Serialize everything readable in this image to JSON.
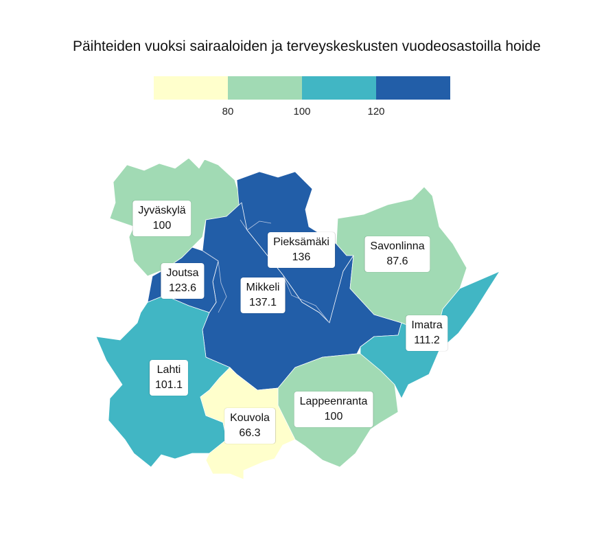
{
  "title": "Päihteiden vuoksi sairaaloiden ja terveyskeskusten vuodeosastoilla hoide",
  "legend": {
    "colors": [
      "#ffffcc",
      "#a1dab4",
      "#41b6c4",
      "#225ea8"
    ],
    "ticks": [
      "80",
      "100",
      "120"
    ]
  },
  "regions": [
    {
      "name": "Jyväskylä",
      "value": "100",
      "color": "#a1dab4"
    },
    {
      "name": "Pieksämäki",
      "value": "136",
      "color": "#225ea8"
    },
    {
      "name": "Savonlinna",
      "value": "87.6",
      "color": "#a1dab4"
    },
    {
      "name": "Joutsa",
      "value": "123.6",
      "color": "#225ea8"
    },
    {
      "name": "Mikkeli",
      "value": "137.1",
      "color": "#225ea8"
    },
    {
      "name": "Imatra",
      "value": "111.2",
      "color": "#41b6c4"
    },
    {
      "name": "Lahti",
      "value": "101.1",
      "color": "#41b6c4"
    },
    {
      "name": "Lappeenranta",
      "value": "100",
      "color": "#a1dab4"
    },
    {
      "name": "Kouvola",
      "value": "66.3",
      "color": "#ffffcc"
    }
  ]
}
